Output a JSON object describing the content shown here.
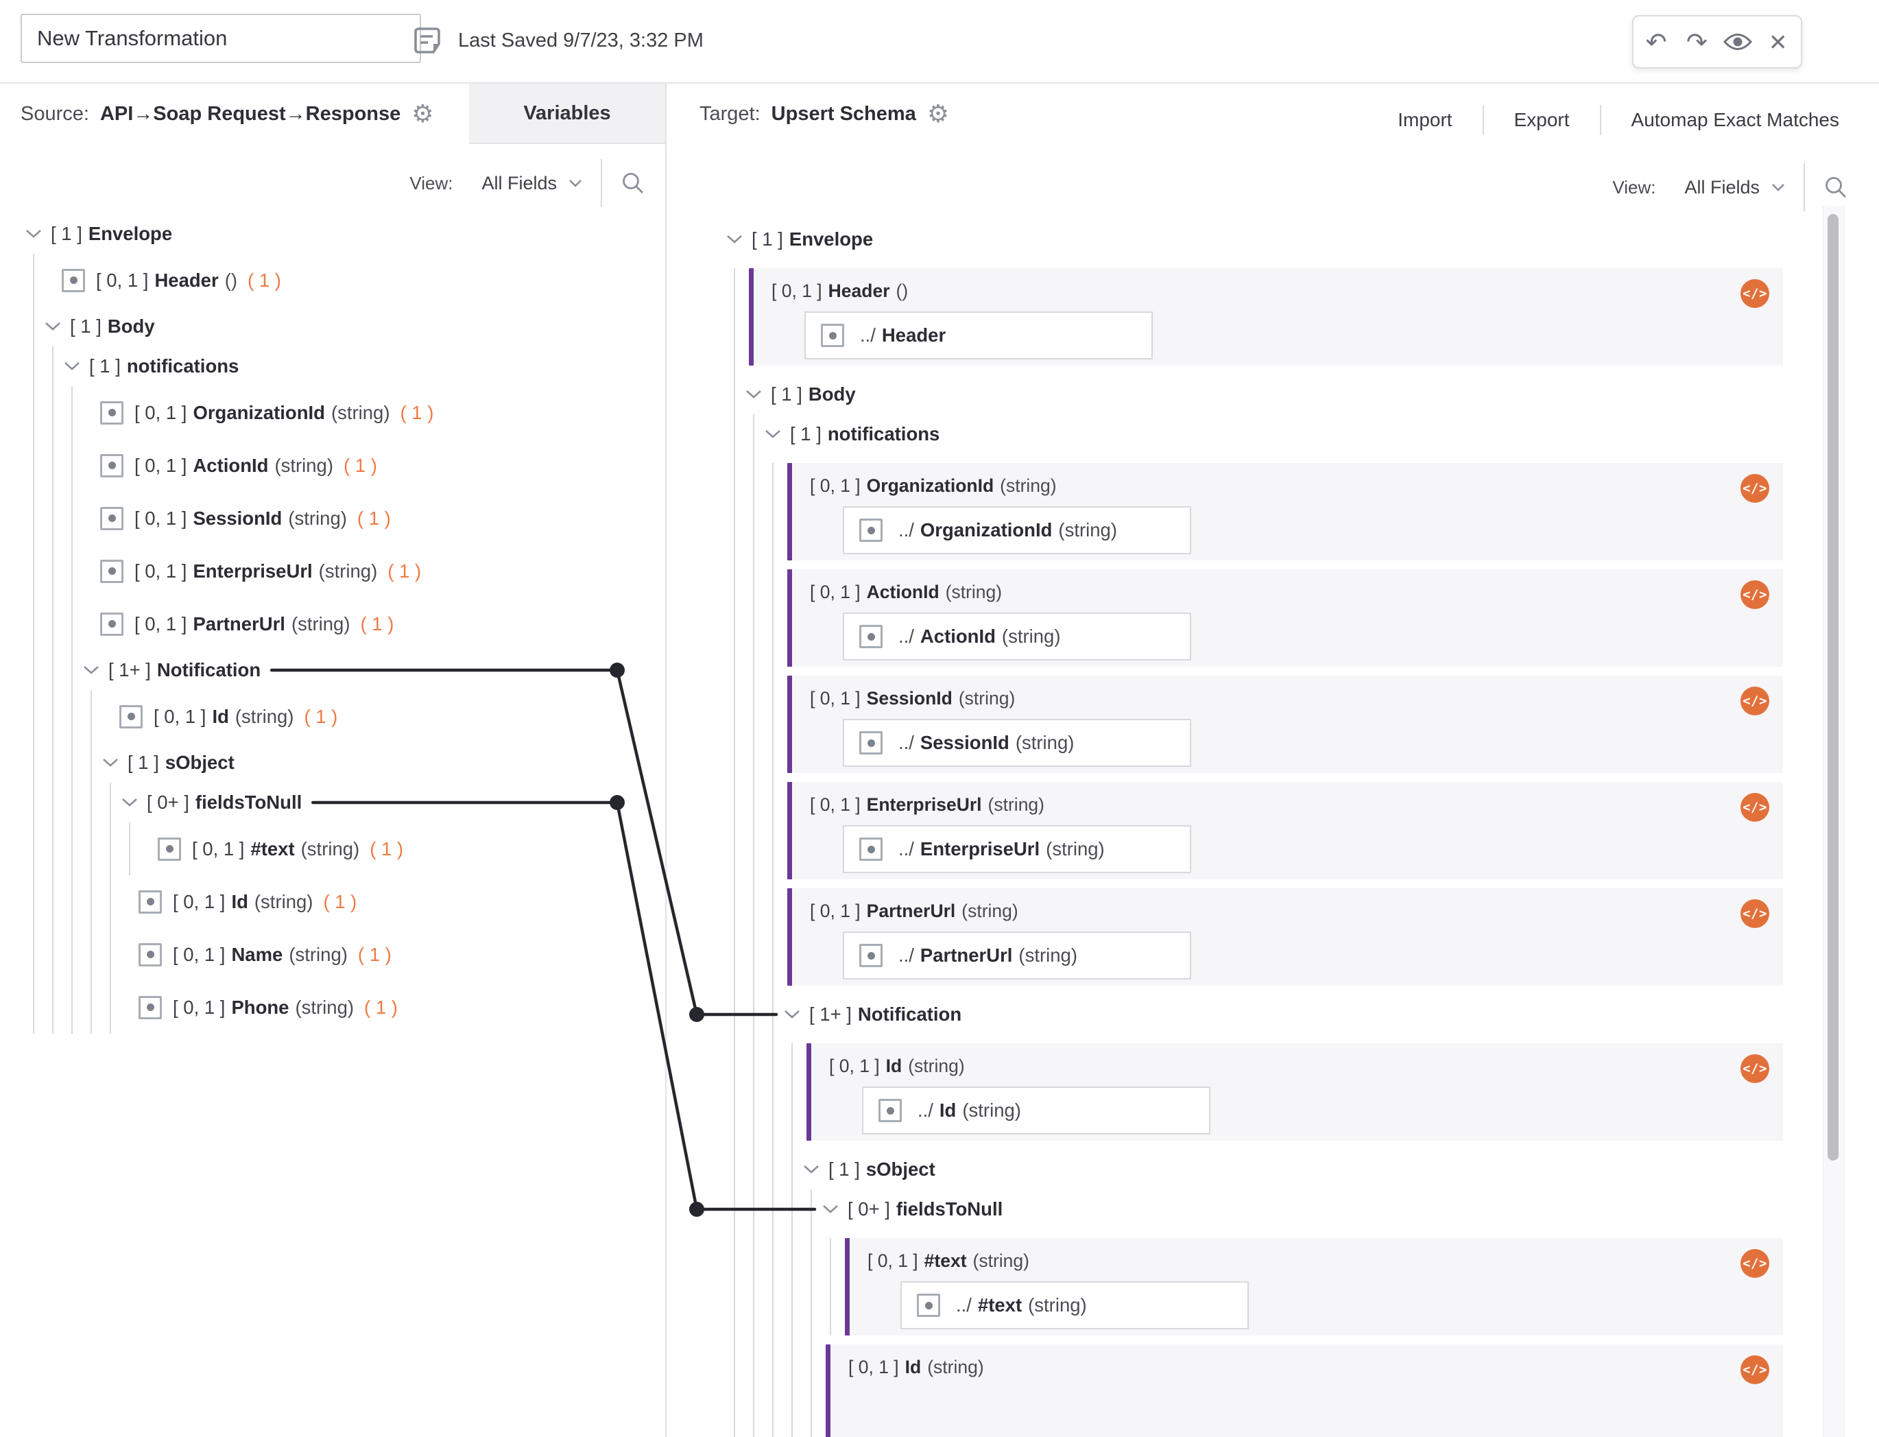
{
  "topbar": {
    "title_input": {
      "value": "New Transformation"
    },
    "last_saved": "Last Saved 9/7/23, 3:32 PM"
  },
  "icons": {
    "gear": "⚙",
    "close": "✕",
    "undo": "↶",
    "redo": "↷",
    "code": "</>",
    "note": "note-icon",
    "eye": "eye-icon",
    "search": "search-icon",
    "chevron_down": "chevron-down-icon",
    "map_indicator": "square-dot-icon"
  },
  "colors": {
    "count_orange": "#ed7b45",
    "code_icon_orange": "#e2703a",
    "mapped_purple": "#6b3898",
    "connector_dark": "#26262e"
  },
  "source_panel": {
    "label": "Source:",
    "name": "API→Soap Request→Response",
    "tab": "Variables",
    "view_label": "View:",
    "view_value": "All Fields",
    "tree": {
      "kind": "group",
      "card": "[ 1 ]",
      "name": "Envelope",
      "children": [
        {
          "kind": "leaf",
          "card": "[ 0, 1 ]",
          "name": "Header",
          "dtype": "()",
          "count": "( 1 )"
        },
        {
          "kind": "group",
          "card": "[ 1 ]",
          "name": "Body",
          "children": [
            {
              "kind": "group",
              "card": "[ 1 ]",
              "name": "notifications",
              "children": [
                {
                  "kind": "leaf",
                  "card": "[ 0, 1 ]",
                  "name": "OrganizationId",
                  "dtype": "(string)",
                  "count": "( 1 )"
                },
                {
                  "kind": "leaf",
                  "card": "[ 0, 1 ]",
                  "name": "ActionId",
                  "dtype": "(string)",
                  "count": "( 1 )"
                },
                {
                  "kind": "leaf",
                  "card": "[ 0, 1 ]",
                  "name": "SessionId",
                  "dtype": "(string)",
                  "count": "( 1 )"
                },
                {
                  "kind": "leaf",
                  "card": "[ 0, 1 ]",
                  "name": "EnterpriseUrl",
                  "dtype": "(string)",
                  "count": "( 1 )"
                },
                {
                  "kind": "leaf",
                  "card": "[ 0, 1 ]",
                  "name": "PartnerUrl",
                  "dtype": "(string)",
                  "count": "( 1 )"
                },
                {
                  "kind": "group",
                  "card": "[ 1+ ]",
                  "name": "Notification",
                  "connector": "notification",
                  "children": [
                    {
                      "kind": "leaf",
                      "card": "[ 0, 1 ]",
                      "name": "Id",
                      "dtype": "(string)",
                      "count": "( 1 )"
                    },
                    {
                      "kind": "group",
                      "card": "[ 1 ]",
                      "name": "sObject",
                      "children": [
                        {
                          "kind": "group",
                          "card": "[ 0+ ]",
                          "name": "fieldsToNull",
                          "connector": "fieldstonull",
                          "children": [
                            {
                              "kind": "leaf",
                              "card": "[ 0, 1 ]",
                              "name": "#text",
                              "dtype": "(string)",
                              "count": "( 1 )"
                            }
                          ]
                        },
                        {
                          "kind": "leaf",
                          "card": "[ 0, 1 ]",
                          "name": "Id",
                          "dtype": "(string)",
                          "count": "( 1 )"
                        },
                        {
                          "kind": "leaf",
                          "card": "[ 0, 1 ]",
                          "name": "Name",
                          "dtype": "(string)",
                          "count": "( 1 )"
                        },
                        {
                          "kind": "leaf",
                          "card": "[ 0, 1 ]",
                          "name": "Phone",
                          "dtype": "(string)",
                          "count": "( 1 )"
                        }
                      ]
                    }
                  ]
                }
              ]
            }
          ]
        }
      ]
    }
  },
  "target_panel": {
    "label": "Target:",
    "name": "Upsert Schema",
    "actions": {
      "import": "Import",
      "export": "Export",
      "automap": "Automap Exact Matches"
    },
    "view_label": "View:",
    "view_value": "All Fields",
    "tree": {
      "kind": "group",
      "card": "[ 1 ]",
      "name": "Envelope",
      "children": [
        {
          "kind": "block",
          "card": "[ 0, 1 ]",
          "name": "Header",
          "dtype": "()",
          "mapped": {
            "prefix": "../",
            "name": "Header",
            "dtype": ""
          }
        },
        {
          "kind": "group",
          "card": "[ 1 ]",
          "name": "Body",
          "children": [
            {
              "kind": "group",
              "card": "[ 1 ]",
              "name": "notifications",
              "children": [
                {
                  "kind": "block",
                  "card": "[ 0, 1 ]",
                  "name": "OrganizationId",
                  "dtype": "(string)",
                  "mapped": {
                    "prefix": "../",
                    "name": "OrganizationId",
                    "dtype": "(string)"
                  }
                },
                {
                  "kind": "block",
                  "card": "[ 0, 1 ]",
                  "name": "ActionId",
                  "dtype": "(string)",
                  "mapped": {
                    "prefix": "../",
                    "name": "ActionId",
                    "dtype": "(string)"
                  }
                },
                {
                  "kind": "block",
                  "card": "[ 0, 1 ]",
                  "name": "SessionId",
                  "dtype": "(string)",
                  "mapped": {
                    "prefix": "../",
                    "name": "SessionId",
                    "dtype": "(string)"
                  }
                },
                {
                  "kind": "block",
                  "card": "[ 0, 1 ]",
                  "name": "EnterpriseUrl",
                  "dtype": "(string)",
                  "mapped": {
                    "prefix": "../",
                    "name": "EnterpriseUrl",
                    "dtype": "(string)"
                  }
                },
                {
                  "kind": "block",
                  "card": "[ 0, 1 ]",
                  "name": "PartnerUrl",
                  "dtype": "(string)",
                  "mapped": {
                    "prefix": "../",
                    "name": "PartnerUrl",
                    "dtype": "(string)"
                  }
                },
                {
                  "kind": "group",
                  "card": "[ 1+ ]",
                  "name": "Notification",
                  "connector": "notification",
                  "children": [
                    {
                      "kind": "block",
                      "card": "[ 0, 1 ]",
                      "name": "Id",
                      "dtype": "(string)",
                      "mapped": {
                        "prefix": "../",
                        "name": "Id",
                        "dtype": "(string)"
                      }
                    },
                    {
                      "kind": "group",
                      "card": "[ 1 ]",
                      "name": "sObject",
                      "children": [
                        {
                          "kind": "group",
                          "card": "[ 0+ ]",
                          "name": "fieldsToNull",
                          "connector": "fieldstonull",
                          "children": [
                            {
                              "kind": "block",
                              "card": "[ 0, 1 ]",
                              "name": "#text",
                              "dtype": "(string)",
                              "mapped": {
                                "prefix": "../",
                                "name": "#text",
                                "dtype": "(string)"
                              }
                            }
                          ]
                        },
                        {
                          "kind": "block",
                          "card": "[ 0, 1 ]",
                          "name": "Id",
                          "dtype": "(string)",
                          "mapped": null
                        }
                      ]
                    }
                  ]
                }
              ]
            }
          ]
        }
      ]
    }
  }
}
